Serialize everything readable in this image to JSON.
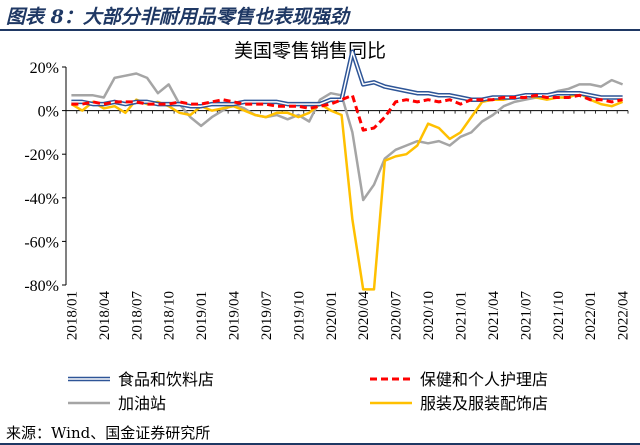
{
  "figure": {
    "heading": "图表 8：大部分非耐用品零售也表现强劲",
    "source": "来源：Wind、国金证券研究所"
  },
  "chart_data": {
    "type": "line",
    "title": "美国零售销售同比",
    "xlabel": "",
    "ylabel": "",
    "ylim": [
      -80,
      20
    ],
    "yticks": [
      -80,
      -60,
      -40,
      -20,
      0,
      20
    ],
    "ytick_labels": [
      "-80%",
      "-60%",
      "-40%",
      "-20%",
      "0%",
      "20%"
    ],
    "grid": false,
    "legend_position": "bottom",
    "x": [
      "2018/01",
      "2018/02",
      "2018/03",
      "2018/04",
      "2018/05",
      "2018/06",
      "2018/07",
      "2018/08",
      "2018/09",
      "2018/10",
      "2018/11",
      "2018/12",
      "2019/01",
      "2019/02",
      "2019/03",
      "2019/04",
      "2019/05",
      "2019/06",
      "2019/07",
      "2019/08",
      "2019/09",
      "2019/10",
      "2019/11",
      "2019/12",
      "2020/01",
      "2020/02",
      "2020/03",
      "2020/04",
      "2020/05",
      "2020/06",
      "2020/07",
      "2020/08",
      "2020/09",
      "2020/10",
      "2020/11",
      "2020/12",
      "2021/01",
      "2021/02",
      "2021/03",
      "2021/04",
      "2021/05",
      "2021/06",
      "2021/07",
      "2021/08",
      "2021/09",
      "2021/10",
      "2021/11",
      "2021/12",
      "2022/01",
      "2022/02",
      "2022/03",
      "2022/04"
    ],
    "x_tick_labels": [
      "2018/01",
      "2018/04",
      "2018/07",
      "2018/10",
      "2019/01",
      "2019/04",
      "2019/07",
      "2019/10",
      "2020/01",
      "2020/04",
      "2020/07",
      "2020/10",
      "2021/01",
      "2021/04",
      "2021/07",
      "2021/10",
      "2022/01",
      "2022/04"
    ],
    "series": [
      {
        "name": "食品和饮料店",
        "color": "#2e5597",
        "style": "double",
        "values": [
          4,
          4,
          3,
          3,
          4,
          3,
          4,
          4,
          3,
          3,
          3,
          2,
          2,
          3,
          3,
          3,
          4,
          4,
          4,
          4,
          3,
          3,
          3,
          3,
          5,
          5,
          27,
          12,
          13,
          11,
          10,
          9,
          8,
          8,
          7,
          7,
          6,
          5,
          5,
          6,
          6,
          6,
          7,
          7,
          7,
          8,
          8,
          8,
          7,
          6,
          6,
          6
        ]
      },
      {
        "name": "保健和个人护理店",
        "color": "#ff0000",
        "style": "dash",
        "values": [
          3,
          3,
          4,
          3,
          4,
          4,
          4,
          3,
          3,
          3,
          4,
          3,
          3,
          4,
          5,
          4,
          3,
          3,
          3,
          2,
          2,
          2,
          1,
          2,
          3,
          5,
          7,
          -9,
          -8,
          -3,
          4,
          5,
          4,
          5,
          4,
          5,
          3,
          5,
          5,
          5,
          6,
          6,
          6,
          7,
          6,
          6,
          6,
          7,
          5,
          5,
          4,
          5
        ]
      },
      {
        "name": "加油站",
        "color": "#a5a5a5",
        "style": "solid",
        "values": [
          7,
          7,
          7,
          6,
          15,
          16,
          17,
          15,
          8,
          12,
          3,
          -3,
          -7,
          -3,
          0,
          3,
          1,
          -2,
          -3,
          -2,
          -4,
          -2,
          -5,
          5,
          8,
          7,
          -10,
          -41,
          -34,
          -22,
          -18,
          -16,
          -14,
          -15,
          -14,
          -16,
          -12,
          -10,
          -5,
          -2,
          2,
          4,
          5,
          6,
          7,
          9,
          10,
          12,
          12,
          11,
          14,
          12
        ]
      },
      {
        "name": "服装及服装配饰店",
        "color": "#ffc000",
        "style": "solid",
        "values": [
          3,
          0,
          4,
          1,
          2,
          -1,
          5,
          3,
          4,
          2,
          -1,
          -2,
          2,
          0,
          1,
          2,
          0,
          -2,
          -3,
          -1,
          -1,
          -3,
          -1,
          3,
          0,
          -2,
          -50,
          -82,
          -82,
          -23,
          -21,
          -20,
          -16,
          -6,
          -8,
          -13,
          -10,
          -3,
          4,
          5,
          5,
          6,
          7,
          6,
          5,
          6,
          6,
          8,
          5,
          3,
          2,
          4
        ]
      }
    ]
  }
}
